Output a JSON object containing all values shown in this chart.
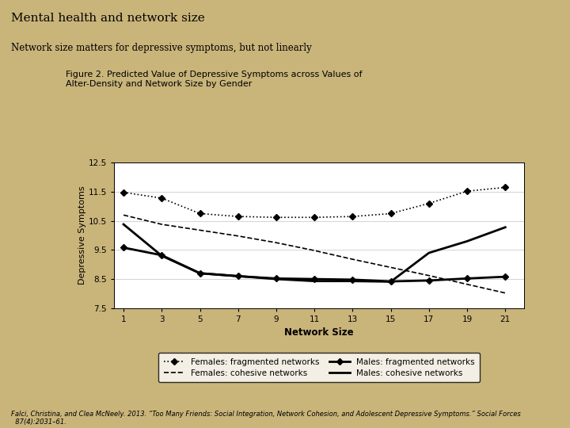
{
  "title": "Mental health and network size",
  "subtitle": "Network size matters for depressive symptoms, but not linearly",
  "fig_title": "Figure 2. Predicted Value of Depressive Symptoms across Values of\nAlter-Density and Network Size by Gender",
  "xlabel": "Network Size",
  "ylabel": "Depressive Symptoms",
  "background_color": "#c9b47a",
  "plot_bg": "#ffffff",
  "x": [
    1,
    3,
    5,
    7,
    9,
    11,
    13,
    15,
    17,
    19,
    21
  ],
  "females_fragmented": [
    11.48,
    11.28,
    10.75,
    10.65,
    10.62,
    10.62,
    10.65,
    10.75,
    11.1,
    11.52,
    11.65
  ],
  "females_cohesive": [
    10.7,
    10.38,
    10.18,
    9.98,
    9.75,
    9.48,
    9.18,
    8.9,
    8.62,
    8.32,
    8.02
  ],
  "males_fragmented": [
    9.58,
    9.32,
    8.7,
    8.6,
    8.52,
    8.5,
    8.48,
    8.42,
    8.45,
    8.52,
    8.58
  ],
  "males_cohesive": [
    10.38,
    9.3,
    8.7,
    8.6,
    8.5,
    8.43,
    8.43,
    8.41,
    9.4,
    9.8,
    10.28
  ],
  "citation": "Falci, Christina, and Clea McNeely. 2013. “Too Many Friends: Social Integration, Network Cohesion, and Adolescent Depressive Symptoms.” Social Forces\n  87(4):2031–61.",
  "ylim": [
    7.5,
    12.5
  ],
  "yticks": [
    7.5,
    8.5,
    9.5,
    10.5,
    11.5,
    12.5
  ]
}
